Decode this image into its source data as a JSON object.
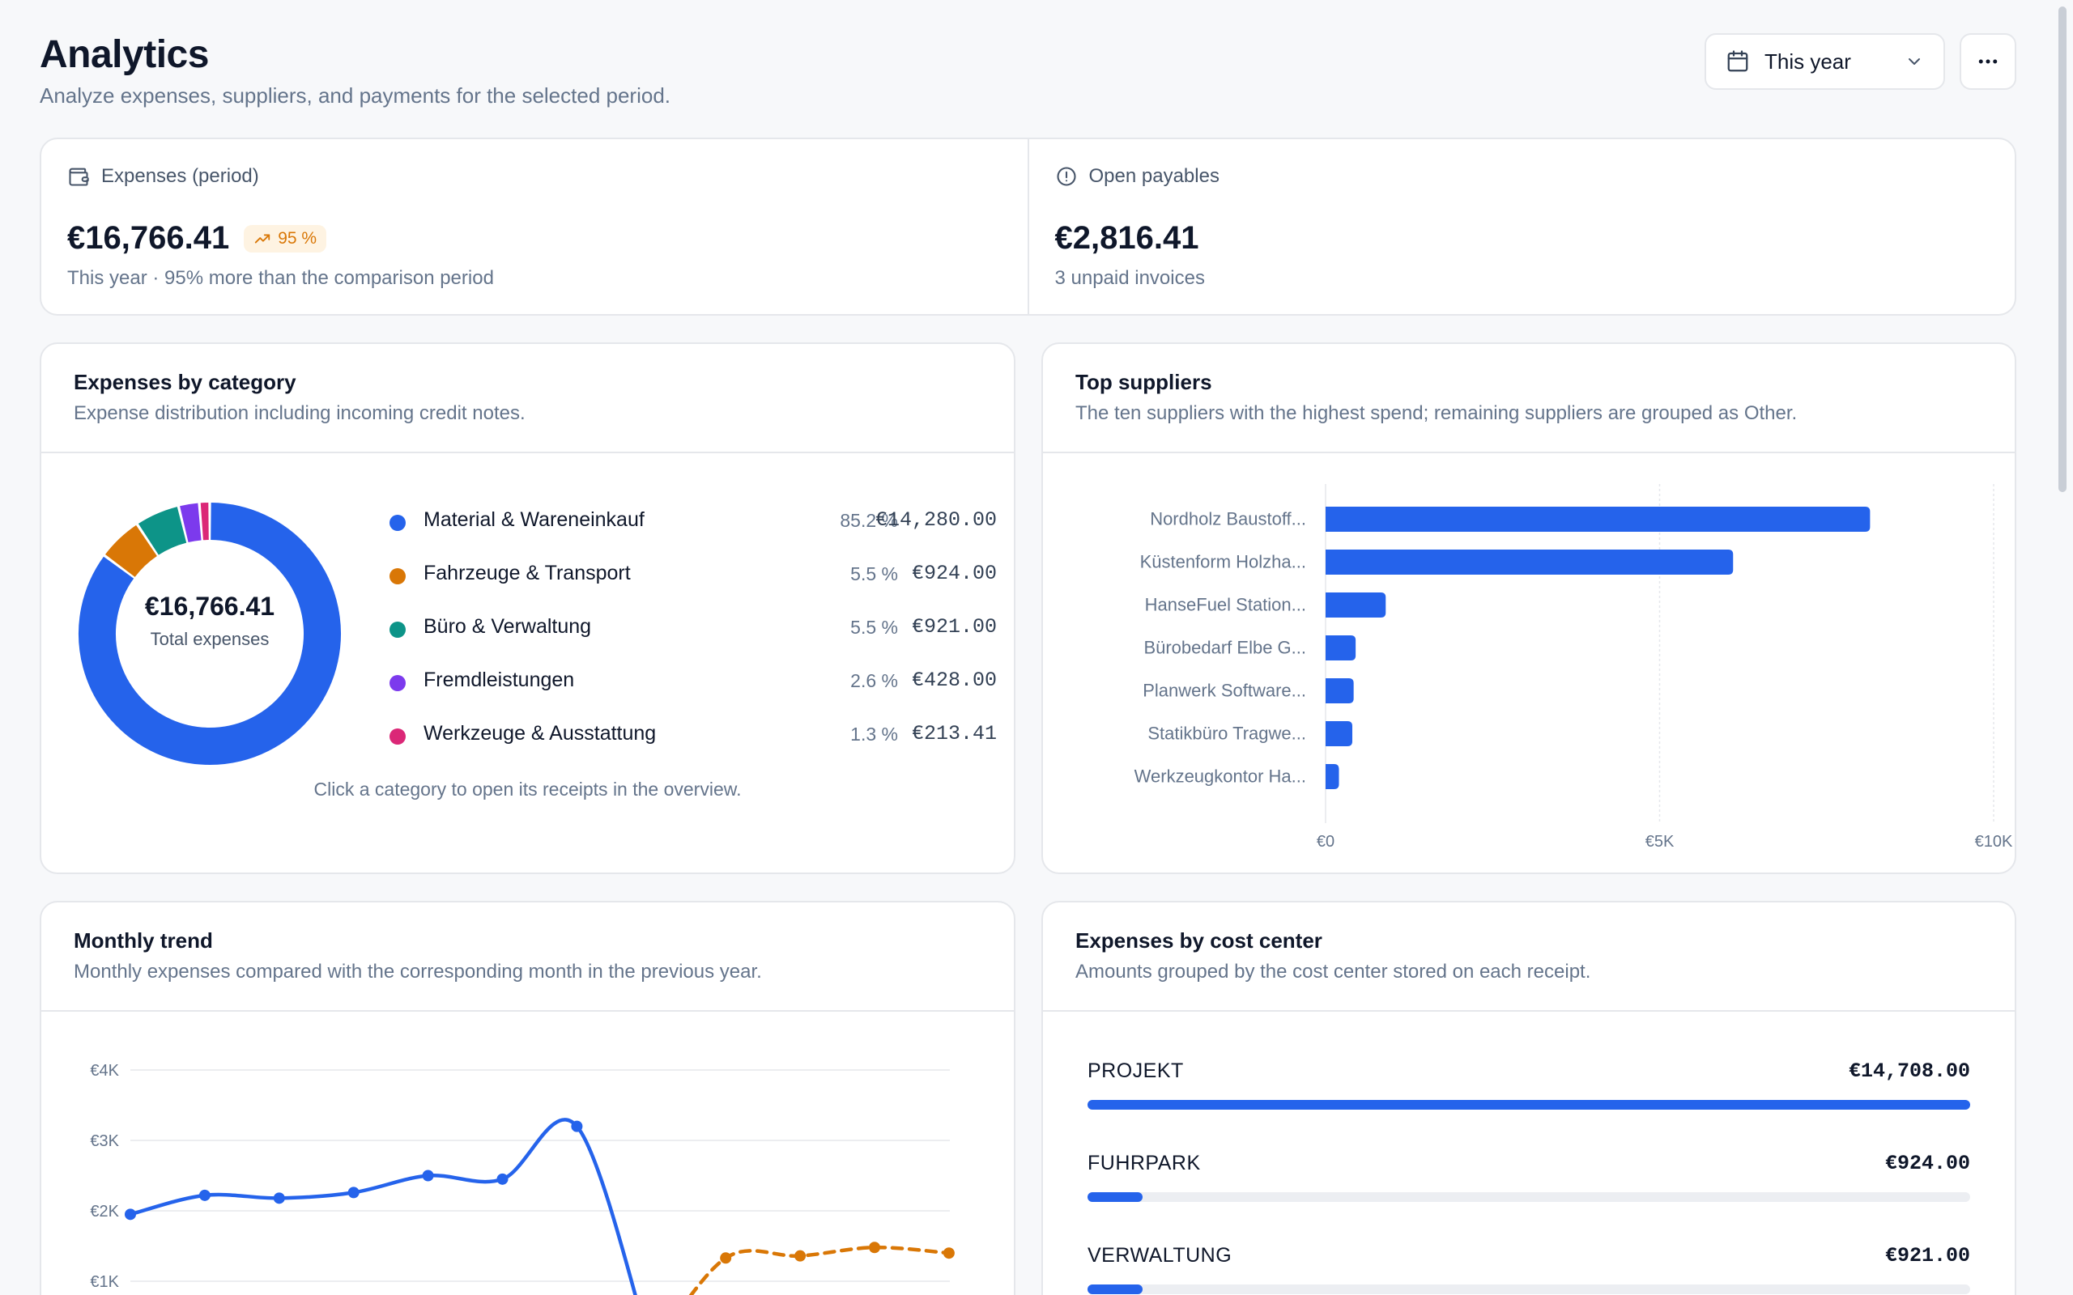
{
  "header": {
    "title": "Analytics",
    "subtitle": "Analyze expenses, suppliers, and payments for the selected period.",
    "period_select": {
      "value": "This year",
      "icon": "calendar-icon"
    },
    "more_icon": "more-horizontal-icon"
  },
  "kpis": {
    "expenses": {
      "label": "Expenses (period)",
      "icon": "wallet-icon",
      "value": "€16,766.41",
      "badge": "95 %",
      "badge_icon": "trend-up-icon",
      "note": "This year · 95% more than the comparison period"
    },
    "payables": {
      "label": "Open payables",
      "icon": "alert-circle-icon",
      "value": "€2,816.41",
      "note": "3 unpaid invoices"
    }
  },
  "category_card": {
    "title": "Expenses by category",
    "description": "Expense distribution including incoming credit notes.",
    "center_value": "€16,766.41",
    "center_label": "Total expenses",
    "hint": "Click a category to open its receipts in the overview.",
    "items": [
      {
        "name": "Material & Wareneinkauf",
        "pct": "85.2 %",
        "amount": "€14,280.00",
        "color": "#2563eb",
        "value": 14280.0
      },
      {
        "name": "Fahrzeuge & Transport",
        "pct": "5.5 %",
        "amount": "€924.00",
        "color": "#d97706",
        "value": 924.0
      },
      {
        "name": "Büro & Verwaltung",
        "pct": "5.5 %",
        "amount": "€921.00",
        "color": "#0d9488",
        "value": 921.0
      },
      {
        "name": "Fremdleistungen",
        "pct": "2.6 %",
        "amount": "€428.00",
        "color": "#7c3aed",
        "value": 428.0
      },
      {
        "name": "Werkzeuge & Ausstattung",
        "pct": "1.3 %",
        "amount": "€213.41",
        "color": "#db2777",
        "value": 213.41
      }
    ]
  },
  "suppliers_card": {
    "title": "Top suppliers",
    "description": "The ten suppliers with the highest spend; remaining suppliers are grouped as Other."
  },
  "trend_card": {
    "title": "Monthly trend",
    "description": "Monthly expenses compared with the corresponding month in the previous year."
  },
  "cost_center_card": {
    "title": "Expenses by cost center",
    "description": "Amounts grouped by the cost center stored on each receipt.",
    "items": [
      {
        "name": "PROJEKT",
        "amount": "€14,708.00",
        "value": 14708.0
      },
      {
        "name": "FUHRPARK",
        "amount": "€924.00",
        "value": 924.0
      },
      {
        "name": "VERWALTUNG",
        "amount": "€921.00",
        "value": 921.0
      }
    ]
  },
  "chart_data": [
    {
      "type": "pie",
      "labels": [
        "Material & Wareneinkauf",
        "Fahrzeuge & Transport",
        "Büro & Verwaltung",
        "Fremdleistungen",
        "Werkzeuge & Ausstattung"
      ],
      "values": [
        14280.0,
        924.0,
        921.0,
        428.0,
        213.41
      ],
      "colors": [
        "#2563eb",
        "#d97706",
        "#0d9488",
        "#7c3aed",
        "#db2777"
      ]
    },
    {
      "type": "bar",
      "orientation": "horizontal",
      "categories": [
        "Nordholz Baustoff...",
        "Küstenform Holzha...",
        "HanseFuel Station...",
        "Bürobedarf Elbe G...",
        "Planwerk Software...",
        "Statikbüro Tragwe...",
        "Werkzeugkontor Ha..."
      ],
      "values": [
        8150,
        6100,
        900,
        450,
        420,
        400,
        200
      ],
      "xlim": [
        0,
        10000
      ],
      "x_ticks": [
        "€0",
        "€5K",
        "€10K"
      ],
      "x_tick_values": [
        0,
        5000,
        10000
      ],
      "color": "#2563eb",
      "grid": true
    },
    {
      "type": "line",
      "x": [
        1,
        2,
        3,
        4,
        5,
        6,
        7,
        8,
        9,
        10,
        11,
        12
      ],
      "series": [
        {
          "values": [
            1950,
            2220,
            2180,
            2260,
            2500,
            2450,
            3200,
            0,
            null,
            null,
            null,
            null
          ],
          "color": "#2563eb",
          "style": "solid"
        },
        {
          "values": [
            null,
            null,
            null,
            null,
            null,
            null,
            null,
            0,
            1330,
            1360,
            1480,
            1400
          ],
          "color": "#d97706",
          "style": "dashed"
        }
      ],
      "prev_year_detail": [
        null,
        null,
        null,
        null,
        null,
        null,
        null,
        200,
        1330,
        1380,
        1360,
        1390
      ],
      "y_ticks": [
        "€1K",
        "€2K",
        "€3K",
        "€4K"
      ],
      "y_tick_values": [
        1000,
        2000,
        3000,
        4000
      ],
      "ylim": [
        0,
        4000
      ],
      "grid": true
    }
  ]
}
